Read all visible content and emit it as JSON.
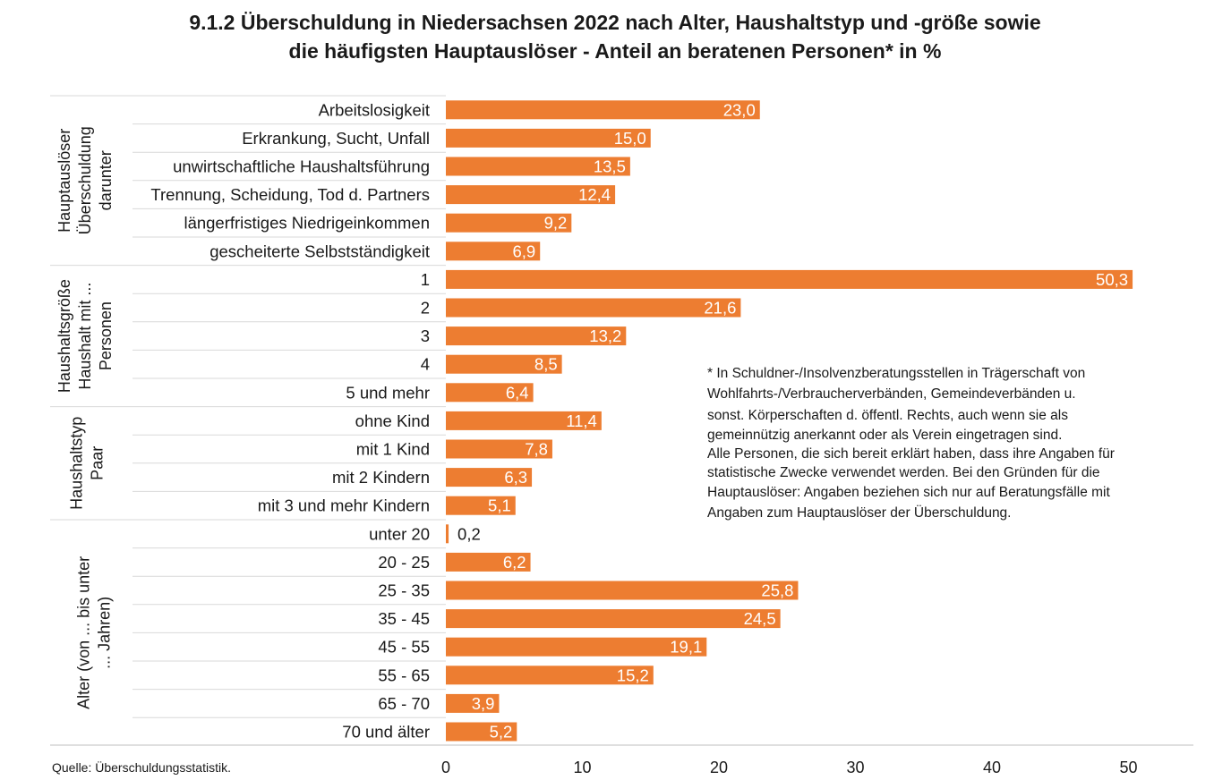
{
  "title_line1": "9.1.2 Überschuldung in Niedersachsen 2022 nach Alter, Haushaltstyp und -größe sowie",
  "title_line2": "die häufigsten Hauptauslöser - Anteil an beratenen Personen* in %",
  "source": "Quelle: Überschuldungsstatistik.",
  "footnote": [
    "* In Schuldner-/Insolvenzberatungsstellen in Trägerschaft von",
    "Wohlfahrts-/Verbraucherverbänden, Gemeindeverbänden u.",
    "sonst. Körperschaften d. öffentl. Rechts, auch wenn sie als",
    "gemeinnützig anerkannt oder als Verein eingetragen sind.",
    "Alle Personen, die sich bereit erklärt haben, dass ihre Angaben für",
    "statistische Zwecke verwendet werden. Bei den Gründen für die",
    "Hauptauslöser: Angaben beziehen sich nur auf Beratungsfälle mit",
    "Angaben zum Hauptauslöser der Überschuldung."
  ],
  "colors": {
    "bar": "#ED7D31",
    "value_inside": "#ffffff",
    "value_outside": "#1a1a1a",
    "axis": "#bfbfbf",
    "separator": "#d9d9d9"
  },
  "chart_data": {
    "type": "bar",
    "orientation": "horizontal",
    "xlim": [
      0,
      55
    ],
    "xticks": [
      0,
      10,
      20,
      30,
      40,
      50
    ],
    "grid": false,
    "groups": [
      {
        "label_lines": [
          "Hauptauslöser",
          "Überschuldung",
          "darunter"
        ],
        "categories": [
          "Arbeitslosigkeit",
          "Erkrankung, Sucht, Unfall",
          "unwirtschaftliche Haushaltsführung",
          "Trennung, Scheidung, Tod d. Partners",
          "längerfristiges Niedrigeinkommen",
          "gescheiterte Selbstständigkeit"
        ],
        "values": [
          23.0,
          15.0,
          13.5,
          12.4,
          9.2,
          6.9
        ],
        "value_labels": [
          "23,0",
          "15,0",
          "13,5",
          "12,4",
          "9,2",
          "6,9"
        ]
      },
      {
        "label_lines": [
          "Haushaltsgröße",
          "Haushalt mit ...",
          "Personen"
        ],
        "categories": [
          "1",
          "2",
          "3",
          "4",
          "5 und mehr"
        ],
        "values": [
          50.3,
          21.6,
          13.2,
          8.5,
          6.4
        ],
        "value_labels": [
          "50,3",
          "21,6",
          "13,2",
          "8,5",
          "6,4"
        ]
      },
      {
        "label_lines": [
          "Haushaltstyp",
          "Paar"
        ],
        "categories": [
          "ohne Kind",
          "mit 1 Kind",
          "mit 2 Kindern",
          "mit 3 und mehr Kindern"
        ],
        "values": [
          11.4,
          7.8,
          6.3,
          5.1
        ],
        "value_labels": [
          "11,4",
          "7,8",
          "6,3",
          "5,1"
        ]
      },
      {
        "label_lines": [
          "Alter (von ... bis unter",
          "... Jahren)"
        ],
        "categories": [
          "unter 20",
          "20 - 25",
          "25 - 35",
          "35 - 45",
          "45 - 55",
          "55 - 65",
          "65 - 70",
          "70 und älter"
        ],
        "values": [
          0.2,
          6.2,
          25.8,
          24.5,
          19.1,
          15.2,
          3.9,
          5.2
        ],
        "value_labels": [
          "0,2",
          "6,2",
          "25,8",
          "24,5",
          "19,1",
          "15,2",
          "3,9",
          "5,2"
        ]
      }
    ]
  }
}
